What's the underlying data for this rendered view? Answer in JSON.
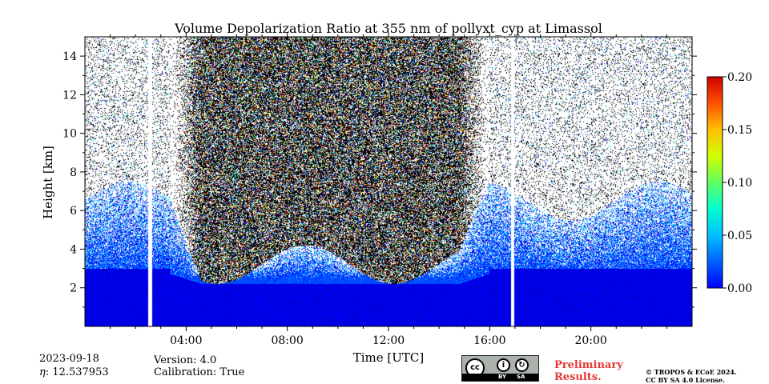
{
  "chart_data": {
    "type": "heatmap",
    "title": "Volume Depolarization Ratio at 355 nm of pollyxt_cyp at Limassol",
    "xlabel": "Time [UTC]",
    "ylabel": "Height [km]",
    "x_ticks": [
      "04:00",
      "08:00",
      "12:00",
      "16:00",
      "20:00"
    ],
    "x_tick_hours": [
      4,
      8,
      12,
      16,
      20
    ],
    "xlim_hours": [
      0,
      24
    ],
    "y_ticks": [
      "2",
      "4",
      "6",
      "8",
      "10",
      "12",
      "14"
    ],
    "y_tick_values": [
      2,
      4,
      6,
      8,
      10,
      12,
      14
    ],
    "ylim_km": [
      0,
      15
    ],
    "colorbar": {
      "ticks": [
        "0.00",
        "0.05",
        "0.10",
        "0.15",
        "0.20"
      ],
      "tick_values": [
        0,
        0.05,
        0.1,
        0.15,
        0.2
      ],
      "range": [
        0,
        0.2
      ],
      "colormap": "jet"
    },
    "data_gaps_hours": [
      [
        2.5,
        2.65
      ],
      [
        16.85,
        16.98
      ]
    ],
    "daytime_noise_hours": [
      3.4,
      16.0
    ],
    "typical_values": {
      "boundary_layer_0_to_3km": 0.02,
      "free_troposphere_3_to_6km": 0.04
    }
  },
  "footer": {
    "date": "2023-09-18",
    "eta_label": "η",
    "eta_value": "12.537953",
    "version_label": "Version",
    "version": "4.0",
    "calibration_label": "Calibration",
    "calibration": "True",
    "license_badge_left": "BY",
    "license_badge_right": "SA",
    "license_badge_cc": "cc",
    "preliminary_line1": "Preliminary",
    "preliminary_line2": "Results.",
    "copyright_line1": "© TROPOS & ECoE 2024.",
    "copyright_line2": "CC BY SA 4.0 License."
  }
}
